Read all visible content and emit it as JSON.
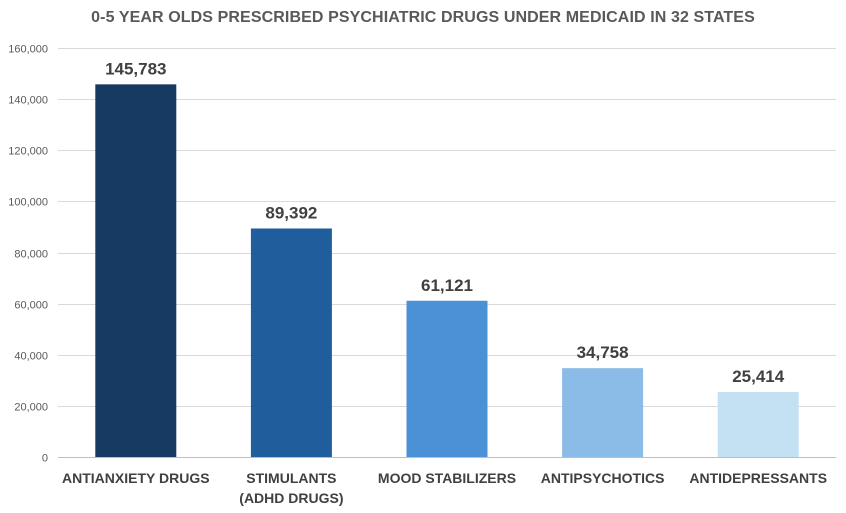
{
  "chart_data": {
    "type": "bar",
    "title": "0-5 YEAR OLDS PRESCRIBED PSYCHIATRIC DRUGS UNDER MEDICAID IN 32 STATES",
    "categories": [
      [
        "ANTIANXIETY DRUGS"
      ],
      [
        "STIMULANTS",
        "(ADHD DRUGS)"
      ],
      [
        "MOOD STABILIZERS"
      ],
      [
        "ANTIPSYCHOTICS"
      ],
      [
        "ANTIDEPRESSANTS"
      ]
    ],
    "values": [
      145783,
      89392,
      61121,
      34758,
      25414
    ],
    "data_labels": [
      "145,783",
      "89,392",
      "61,121",
      "34,758",
      "25,414"
    ],
    "colors": [
      "#173a62",
      "#1f5d9c",
      "#4b91d6",
      "#8bbbe7",
      "#c4e1f4"
    ],
    "ylim": [
      0,
      160000
    ],
    "yticks": [
      0,
      20000,
      40000,
      60000,
      80000,
      100000,
      120000,
      140000,
      160000
    ],
    "ytick_labels": [
      "0",
      "20,000",
      "40,000",
      "60,000",
      "80,000",
      "100,000",
      "120,000",
      "140,000",
      "160,000"
    ],
    "xlabel": "",
    "ylabel": "",
    "grid": true,
    "legend": "none"
  }
}
